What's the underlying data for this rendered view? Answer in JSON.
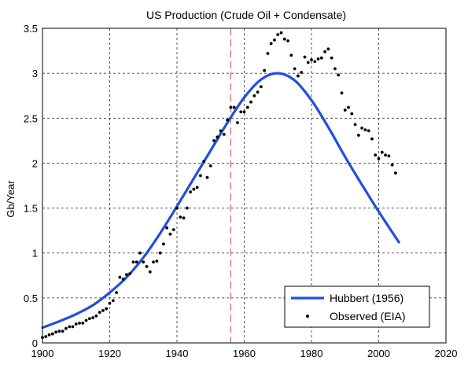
{
  "chart_data": {
    "type": "line",
    "title": "US Production (Crude Oil + Condensate)",
    "xlabel": "",
    "ylabel": "Gb/Year",
    "xlim": [
      1900,
      2020
    ],
    "ylim": [
      0,
      3.5
    ],
    "xticks": [
      "1900",
      "1920",
      "1940",
      "1960",
      "1980",
      "2000",
      "2020"
    ],
    "yticks": [
      "0",
      "0.5",
      "1",
      "1.5",
      "2",
      "2.5",
      "3",
      "3.5"
    ],
    "grid": true,
    "legend_position": "bottom-right",
    "reference_line": {
      "x": 1956,
      "color": "#e06060",
      "style": "dashed"
    },
    "series": [
      {
        "name": "Hubbert (1956)",
        "style": "line",
        "color": "#1f4fe0",
        "x": [
          1900,
          1905,
          1910,
          1915,
          1920,
          1925,
          1930,
          1935,
          1940,
          1945,
          1950,
          1955,
          1960,
          1965,
          1970,
          1975,
          1980,
          1985,
          1990,
          1995,
          2000,
          2006
        ],
        "y": [
          0.17,
          0.24,
          0.32,
          0.42,
          0.56,
          0.73,
          0.95,
          1.22,
          1.52,
          1.83,
          2.14,
          2.45,
          2.73,
          2.93,
          3.0,
          2.92,
          2.7,
          2.4,
          2.07,
          1.76,
          1.46,
          1.12
        ]
      },
      {
        "name": "Observed (EIA)",
        "style": "scatter",
        "color": "#000000",
        "x": [
          1900,
          1901,
          1902,
          1903,
          1904,
          1905,
          1906,
          1907,
          1908,
          1909,
          1910,
          1911,
          1912,
          1913,
          1914,
          1915,
          1916,
          1917,
          1918,
          1919,
          1920,
          1921,
          1922,
          1923,
          1924,
          1925,
          1926,
          1927,
          1928,
          1929,
          1930,
          1931,
          1932,
          1933,
          1934,
          1935,
          1936,
          1937,
          1938,
          1939,
          1940,
          1941,
          1942,
          1943,
          1944,
          1945,
          1946,
          1947,
          1948,
          1949,
          1950,
          1951,
          1952,
          1953,
          1954,
          1955,
          1956,
          1957,
          1958,
          1959,
          1960,
          1961,
          1962,
          1963,
          1964,
          1965,
          1966,
          1967,
          1968,
          1969,
          1970,
          1971,
          1972,
          1973,
          1974,
          1975,
          1976,
          1977,
          1978,
          1979,
          1980,
          1981,
          1982,
          1983,
          1984,
          1985,
          1986,
          1987,
          1988,
          1989,
          1990,
          1991,
          1992,
          1993,
          1994,
          1995,
          1996,
          1997,
          1998,
          1999,
          2000,
          2001,
          2002,
          2003,
          2004,
          2005
        ],
        "y": [
          0.06,
          0.07,
          0.09,
          0.1,
          0.12,
          0.13,
          0.13,
          0.16,
          0.18,
          0.18,
          0.21,
          0.22,
          0.22,
          0.25,
          0.27,
          0.28,
          0.3,
          0.34,
          0.36,
          0.38,
          0.44,
          0.47,
          0.56,
          0.73,
          0.71,
          0.76,
          0.77,
          0.9,
          0.9,
          1.0,
          0.9,
          0.85,
          0.79,
          0.9,
          0.91,
          1.0,
          1.1,
          1.28,
          1.21,
          1.26,
          1.5,
          1.4,
          1.39,
          1.5,
          1.68,
          1.71,
          1.73,
          1.86,
          2.02,
          1.84,
          1.97,
          2.25,
          2.29,
          2.36,
          2.32,
          2.48,
          2.62,
          2.62,
          2.45,
          2.57,
          2.57,
          2.62,
          2.68,
          2.75,
          2.79,
          2.85,
          3.03,
          3.22,
          3.33,
          3.37,
          3.43,
          3.45,
          3.38,
          3.36,
          3.2,
          3.05,
          2.97,
          3.01,
          3.18,
          3.12,
          3.15,
          3.13,
          3.16,
          3.17,
          3.24,
          3.27,
          3.17,
          3.05,
          2.98,
          2.78,
          2.59,
          2.62,
          2.55,
          2.43,
          2.31,
          2.39,
          2.37,
          2.36,
          2.27,
          2.09,
          2.05,
          2.12,
          2.09,
          2.08,
          1.98,
          1.89
        ]
      }
    ]
  }
}
